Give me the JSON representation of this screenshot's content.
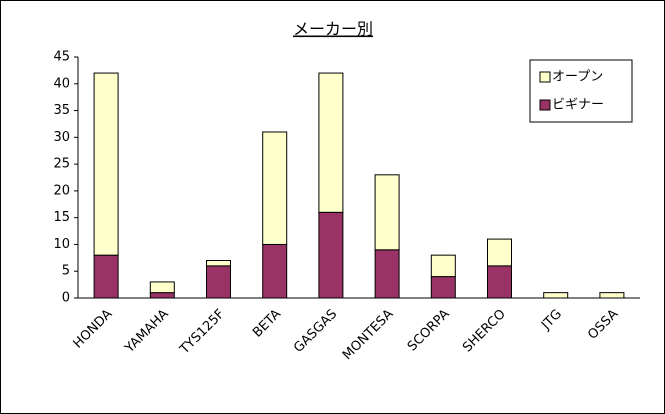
{
  "chart_data": {
    "type": "stacked-bar",
    "title": "メーカー別",
    "categories": [
      "HONDA",
      "YAMAHA",
      "TYS125F",
      "BETA",
      "GASGAS",
      "MONTESA",
      "SCORPA",
      "SHERCO",
      "JTG",
      "OSSA"
    ],
    "series": [
      {
        "name": "ビギナー",
        "color": "#993366",
        "values": [
          8,
          1,
          6,
          10,
          16,
          9,
          4,
          6,
          0,
          0
        ]
      },
      {
        "name": "オープン",
        "color": "#ffffcc",
        "values": [
          34,
          2,
          1,
          21,
          26,
          14,
          4,
          5,
          1,
          1
        ]
      }
    ],
    "ylim": [
      0,
      45
    ],
    "yticks": [
      0,
      5,
      10,
      15,
      20,
      25,
      30,
      35,
      40,
      45
    ],
    "grid": false,
    "legend": "upper right"
  }
}
